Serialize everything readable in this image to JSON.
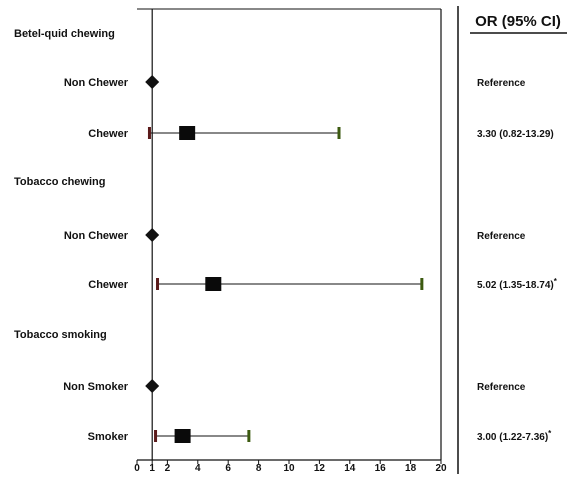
{
  "chart_data": {
    "type": "forest",
    "column_header": "OR (95% CI)",
    "xlim": [
      0,
      20
    ],
    "x_ticks": [
      0,
      1,
      2,
      4,
      6,
      8,
      10,
      12,
      14,
      16,
      18,
      20
    ],
    "reference_line": 1,
    "grid": false,
    "colors": {
      "estimate": "#0a0a0a",
      "reference_marker": "#111111",
      "ci_lower_cap": "#5a1a1a",
      "ci_upper_cap": "#3c5a10",
      "line": "#111111"
    },
    "rows": [
      {
        "label": "Betel-quid chewing",
        "type": "group"
      },
      {
        "label": "Non Chewer",
        "type": "reference",
        "or": 1,
        "or_text": "Reference"
      },
      {
        "label": "Chewer",
        "type": "estimate",
        "or": 3.3,
        "lower": 0.82,
        "upper": 13.29,
        "or_text": "3.30 (0.82-13.29)"
      },
      {
        "label": "Tobacco chewing",
        "type": "group"
      },
      {
        "label": "Non Chewer",
        "type": "reference",
        "or": 1,
        "or_text": "Reference"
      },
      {
        "label": "Chewer",
        "type": "estimate",
        "or": 5.02,
        "lower": 1.35,
        "upper": 18.74,
        "or_text": "5.02 (1.35-18.74)",
        "sig": "*"
      },
      {
        "label": "Tobacco smoking",
        "type": "group"
      },
      {
        "label": "Non Smoker",
        "type": "reference",
        "or": 1,
        "or_text": "Reference"
      },
      {
        "label": "Smoker",
        "type": "estimate",
        "or": 3.0,
        "lower": 1.22,
        "upper": 7.36,
        "or_text": "3.00 (1.22-7.36)",
        "sig": "*"
      }
    ]
  }
}
